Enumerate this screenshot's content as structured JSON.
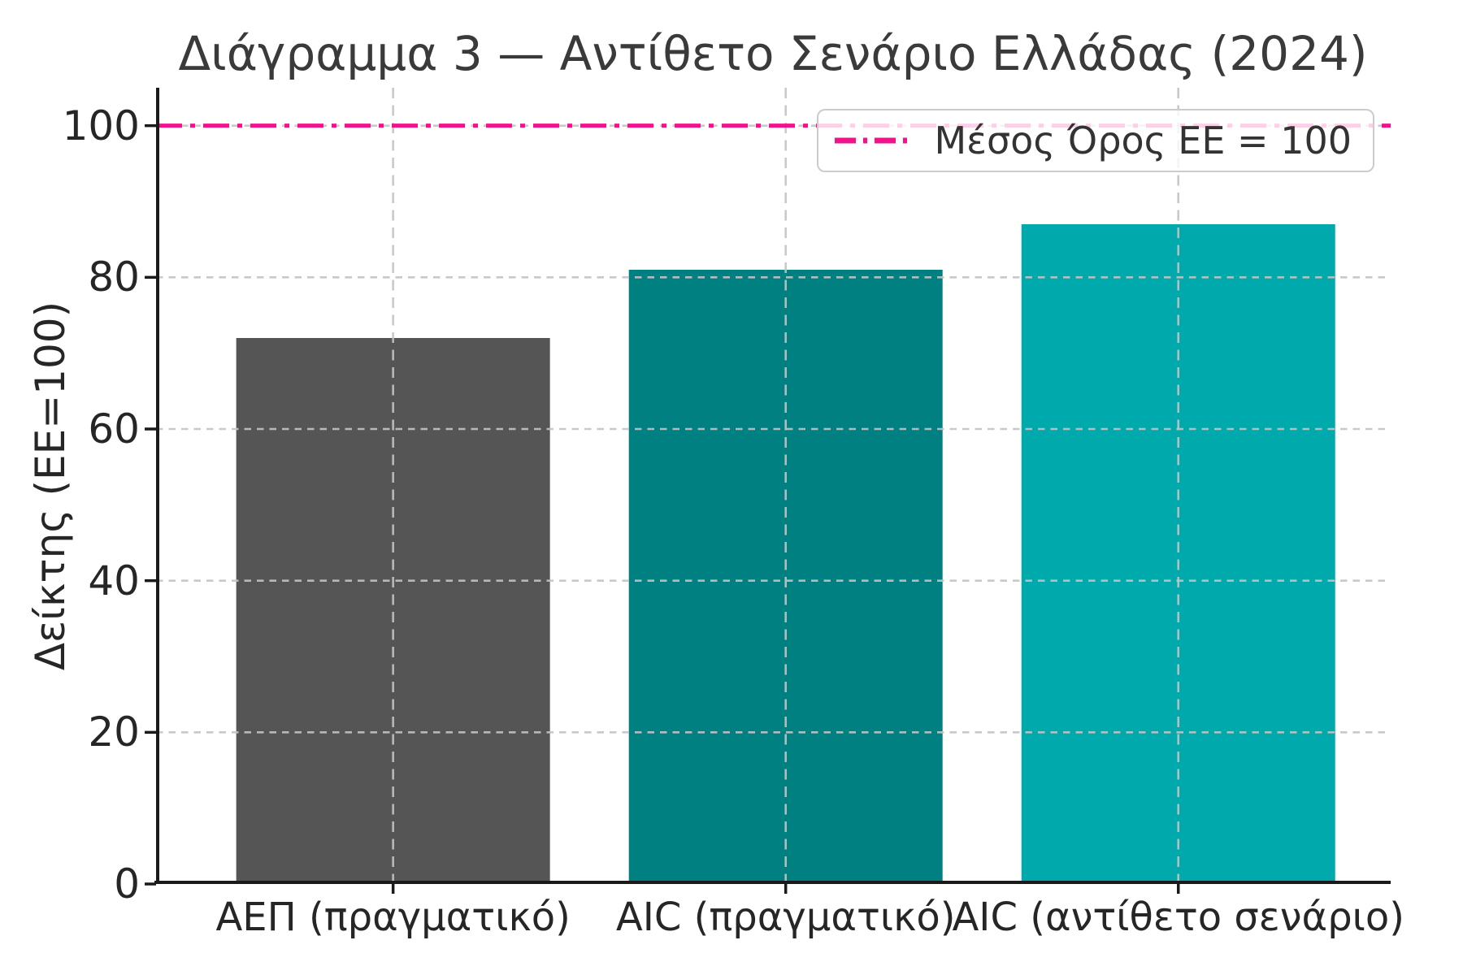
{
  "chart_data": {
    "type": "bar",
    "title": "Διάγραμμα 3 — Αντίθετο Σενάριο Ελλάδας (2024)",
    "xlabel": "",
    "ylabel": "Δείκτης (ΕΕ=100)",
    "categories": [
      "ΑΕΠ (πραγματικό)",
      "AIC (πραγματικό)",
      "AIC (αντίθετο σενάριο)"
    ],
    "values": [
      72,
      81,
      87
    ],
    "bar_colors": [
      "#555555",
      "#008080",
      "#00A9AC"
    ],
    "ylim": [
      0,
      105
    ],
    "yticks": [
      0,
      20,
      40,
      60,
      80,
      100
    ],
    "grid": "dashed, horizontal and vertical, drawn over bars",
    "grid_color": "#c3c3c3",
    "axis_color": "#1a1a1a",
    "reference_line": {
      "y": 100,
      "label": "Μέσος Όρος ΕΕ = 100",
      "color": "#F0148C",
      "style": "dashdot"
    },
    "legend_position": "upper right"
  }
}
